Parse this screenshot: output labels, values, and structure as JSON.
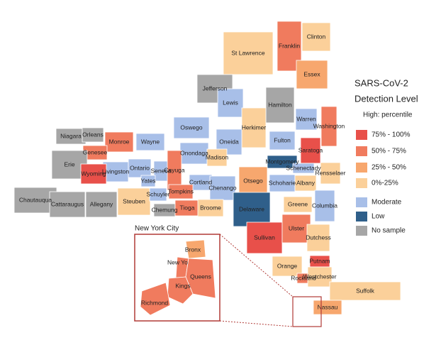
{
  "title": "SARS-CoV-2",
  "subtitle": "Detection Level",
  "legend": {
    "heading": "High: percentile",
    "items": [
      {
        "label": "75% - 100%",
        "color": "#e8504a"
      },
      {
        "label": "50% - 75%",
        "color": "#f07b5e"
      },
      {
        "label": "25% - 50%",
        "color": "#f7a76e"
      },
      {
        "label": "0%-25%",
        "color": "#fbd09a"
      },
      {
        "label": "Moderate",
        "color": "#a8bfe8"
      },
      {
        "label": "Low",
        "color": "#2f5f8a"
      },
      {
        "label": "No sample",
        "color": "#a6a6a6"
      }
    ]
  },
  "counties": [
    {
      "name": "Clinton",
      "color": "#fbd09a"
    },
    {
      "name": "Franklin",
      "color": "#f07b5e"
    },
    {
      "name": "St Lawrence",
      "color": "#fbd09a"
    },
    {
      "name": "Essex",
      "color": "#f7a76e"
    },
    {
      "name": "Jefferson",
      "color": "#a6a6a6"
    },
    {
      "name": "Lewis",
      "color": "#a8bfe8"
    },
    {
      "name": "Hamilton",
      "color": "#a6a6a6"
    },
    {
      "name": "Warren",
      "color": "#a8bfe8"
    },
    {
      "name": "Washington",
      "color": "#f07b5e"
    },
    {
      "name": "Herkimer",
      "color": "#fbd09a"
    },
    {
      "name": "Oswego",
      "color": "#a8bfe8"
    },
    {
      "name": "Oneida",
      "color": "#a8bfe8"
    },
    {
      "name": "Fulton",
      "color": "#a8bfe8"
    },
    {
      "name": "Saratoga",
      "color": "#e8504a"
    },
    {
      "name": "Niagara",
      "color": "#a6a6a6"
    },
    {
      "name": "Orleans",
      "color": "#a6a6a6"
    },
    {
      "name": "Monroe",
      "color": "#f07b5e"
    },
    {
      "name": "Wayne",
      "color": "#a8bfe8"
    },
    {
      "name": "Onondaga",
      "color": "#a8bfe8"
    },
    {
      "name": "Madison",
      "color": "#fbd09a"
    },
    {
      "name": "Montgomery",
      "color": "#2f5f8a"
    },
    {
      "name": "Schenectady",
      "color": "#a8bfe8"
    },
    {
      "name": "Rensselaer",
      "color": "#fbd09a"
    },
    {
      "name": "Genesee",
      "color": "#f07b5e"
    },
    {
      "name": "Erie",
      "color": "#a6a6a6"
    },
    {
      "name": "Livingston",
      "color": "#a8bfe8"
    },
    {
      "name": "Ontario",
      "color": "#a8bfe8"
    },
    {
      "name": "Seneca",
      "color": "#a8bfe8"
    },
    {
      "name": "Cayuga",
      "color": "#f07b5e"
    },
    {
      "name": "Cortland",
      "color": "#a8bfe8"
    },
    {
      "name": "Otsego",
      "color": "#f7a76e"
    },
    {
      "name": "Schoharie",
      "color": "#a8bfe8"
    },
    {
      "name": "Albany",
      "color": "#fbd09a"
    },
    {
      "name": "Wyoming",
      "color": "#e8504a"
    },
    {
      "name": "Yates",
      "color": "#a8bfe8"
    },
    {
      "name": "Tompkins",
      "color": "#f07b5e"
    },
    {
      "name": "Chenango",
      "color": "#a8bfe8"
    },
    {
      "name": "Chautauqua",
      "color": "#a6a6a6"
    },
    {
      "name": "Cattaraugus",
      "color": "#a6a6a6"
    },
    {
      "name": "Allegany",
      "color": "#a6a6a6"
    },
    {
      "name": "Steuben",
      "color": "#fbd09a"
    },
    {
      "name": "Schuyler",
      "color": "#a8bfe8"
    },
    {
      "name": "Chemung",
      "color": "#a6a6a6"
    },
    {
      "name": "Tioga",
      "color": "#f07b5e"
    },
    {
      "name": "Broome",
      "color": "#fbd09a"
    },
    {
      "name": "Delaware",
      "color": "#2f5f8a"
    },
    {
      "name": "Greene",
      "color": "#fbd09a"
    },
    {
      "name": "Columbia",
      "color": "#a8bfe8"
    },
    {
      "name": "Sullivan",
      "color": "#e8504a"
    },
    {
      "name": "Ulster",
      "color": "#f07b5e"
    },
    {
      "name": "Dutchess",
      "color": "#fbd09a"
    },
    {
      "name": "Putnam",
      "color": "#e8504a"
    },
    {
      "name": "Orange",
      "color": "#fbd09a"
    },
    {
      "name": "Rockland",
      "color": "#f07b5e"
    },
    {
      "name": "Westchester",
      "color": "#fbd09a"
    },
    {
      "name": "Suffolk",
      "color": "#fbd09a"
    },
    {
      "name": "Nassau",
      "color": "#f7a76e"
    }
  ],
  "inset": {
    "title": "New York City",
    "boroughs": [
      {
        "name": "Bronx",
        "color": "#f7a76e"
      },
      {
        "name": "New York",
        "color": "#f07b5e"
      },
      {
        "name": "Queens",
        "color": "#f07b5e"
      },
      {
        "name": "Kings",
        "color": "#f07b5e"
      },
      {
        "name": "Richmond",
        "color": "#f07b5e"
      }
    ]
  }
}
